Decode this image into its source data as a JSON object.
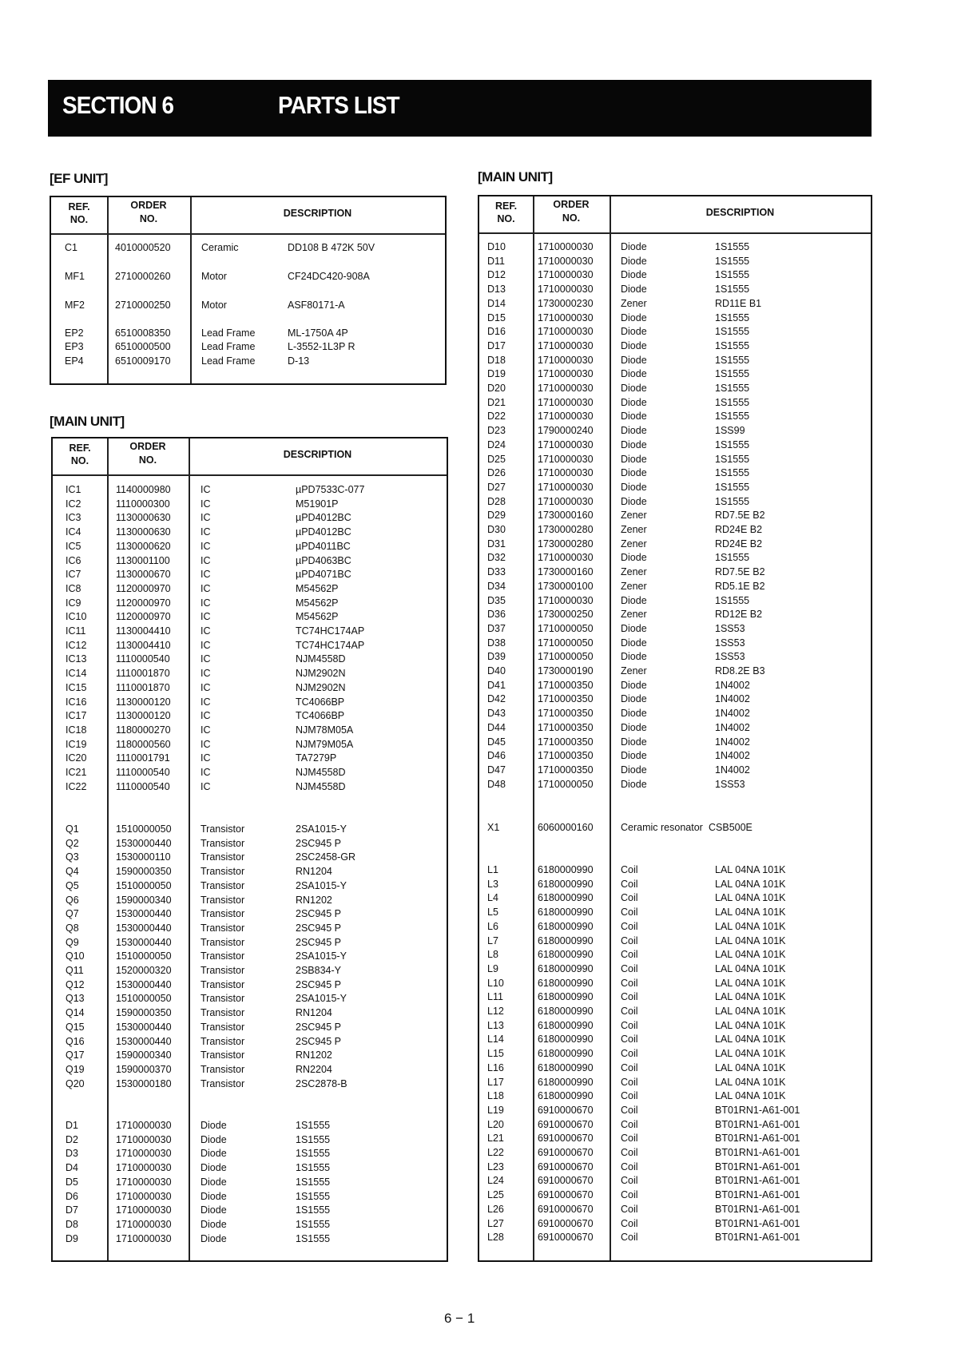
{
  "header": {
    "section": "SECTION 6",
    "title": "PARTS LIST"
  },
  "columns": {
    "ref_line1": "REF.",
    "ref_line2": "NO.",
    "order_line1": "ORDER",
    "order_line2": "NO.",
    "description": "DESCRIPTION"
  },
  "ef_unit": {
    "label": "[EF UNIT]",
    "rows": [
      [
        "C1",
        "4010000520",
        "Ceramic",
        "DD108 B 472K 50V"
      ],
      [
        "MF1",
        "2710000260",
        "Motor",
        "CF24DC420-908A"
      ],
      [
        "MF2",
        "2710000250",
        "Motor",
        "ASF80171-A"
      ],
      [
        "EP2",
        "6510008350",
        "Lead Frame",
        "ML-1750A 4P"
      ],
      [
        "EP3",
        "6510000500",
        "Lead Frame",
        "L-3552-1L3P R"
      ],
      [
        "EP4",
        "6510009170",
        "Lead Frame",
        "D-13"
      ]
    ]
  },
  "main_unit_left": {
    "label": "[MAIN UNIT]",
    "groups": [
      [
        [
          "IC1",
          "1140000980",
          "IC",
          "µPD7533C-077"
        ],
        [
          "IC2",
          "1110000300",
          "IC",
          "M51901P"
        ],
        [
          "IC3",
          "1130000630",
          "IC",
          "µPD4012BC"
        ],
        [
          "IC4",
          "1130000630",
          "IC",
          "µPD4012BC"
        ],
        [
          "IC5",
          "1130000620",
          "IC",
          "µPD4011BC"
        ],
        [
          "IC6",
          "1130001100",
          "IC",
          "µPD4063BC"
        ],
        [
          "IC7",
          "1130000670",
          "IC",
          "µPD4071BC"
        ],
        [
          "IC8",
          "1120000970",
          "IC",
          "M54562P"
        ],
        [
          "IC9",
          "1120000970",
          "IC",
          "M54562P"
        ],
        [
          "IC10",
          "1120000970",
          "IC",
          "M54562P"
        ],
        [
          "IC11",
          "1130004410",
          "IC",
          "TC74HC174AP"
        ],
        [
          "IC12",
          "1130004410",
          "IC",
          "TC74HC174AP"
        ],
        [
          "IC13",
          "1110000540",
          "IC",
          "NJM4558D"
        ],
        [
          "IC14",
          "1110001870",
          "IC",
          "NJM2902N"
        ],
        [
          "IC15",
          "1110001870",
          "IC",
          "NJM2902N"
        ],
        [
          "IC16",
          "1130000120",
          "IC",
          "TC4066BP"
        ],
        [
          "IC17",
          "1130000120",
          "IC",
          "TC4066BP"
        ],
        [
          "IC18",
          "1180000270",
          "IC",
          "NJM78M05A"
        ],
        [
          "IC19",
          "1180000560",
          "IC",
          "NJM79M05A"
        ],
        [
          "IC20",
          "1110001791",
          "IC",
          "TA7279P"
        ],
        [
          "IC21",
          "1110000540",
          "IC",
          "NJM4558D"
        ],
        [
          "IC22",
          "1110000540",
          "IC",
          "NJM4558D"
        ]
      ],
      [
        [
          "Q1",
          "1510000050",
          "Transistor",
          "2SA1015-Y"
        ],
        [
          "Q2",
          "1530000440",
          "Transistor",
          "2SC945 P"
        ],
        [
          "Q3",
          "1530000110",
          "Transistor",
          "2SC2458-GR"
        ],
        [
          "Q4",
          "1590000350",
          "Transistor",
          "RN1204"
        ],
        [
          "Q5",
          "1510000050",
          "Transistor",
          "2SA1015-Y"
        ],
        [
          "Q6",
          "1590000340",
          "Transistor",
          "RN1202"
        ],
        [
          "Q7",
          "1530000440",
          "Transistor",
          "2SC945 P"
        ],
        [
          "Q8",
          "1530000440",
          "Transistor",
          "2SC945 P"
        ],
        [
          "Q9",
          "1530000440",
          "Transistor",
          "2SC945 P"
        ],
        [
          "Q10",
          "1510000050",
          "Transistor",
          "2SA1015-Y"
        ],
        [
          "Q11",
          "1520000320",
          "Transistor",
          "2SB834-Y"
        ],
        [
          "Q12",
          "1530000440",
          "Transistor",
          "2SC945 P"
        ],
        [
          "Q13",
          "1510000050",
          "Transistor",
          "2SA1015-Y"
        ],
        [
          "Q14",
          "1590000350",
          "Transistor",
          "RN1204"
        ],
        [
          "Q15",
          "1530000440",
          "Transistor",
          "2SC945 P"
        ],
        [
          "Q16",
          "1530000440",
          "Transistor",
          "2SC945 P"
        ],
        [
          "Q17",
          "1590000340",
          "Transistor",
          "RN1202"
        ],
        [
          "Q19",
          "1590000370",
          "Transistor",
          "RN2204"
        ],
        [
          "Q20",
          "1530000180",
          "Transistor",
          "2SC2878-B"
        ]
      ],
      [
        [
          "D1",
          "1710000030",
          "Diode",
          "1S1555"
        ],
        [
          "D2",
          "1710000030",
          "Diode",
          "1S1555"
        ],
        [
          "D3",
          "1710000030",
          "Diode",
          "1S1555"
        ],
        [
          "D4",
          "1710000030",
          "Diode",
          "1S1555"
        ],
        [
          "D5",
          "1710000030",
          "Diode",
          "1S1555"
        ],
        [
          "D6",
          "1710000030",
          "Diode",
          "1S1555"
        ],
        [
          "D7",
          "1710000030",
          "Diode",
          "1S1555"
        ],
        [
          "D8",
          "1710000030",
          "Diode",
          "1S1555"
        ],
        [
          "D9",
          "1710000030",
          "Diode",
          "1S1555"
        ]
      ]
    ]
  },
  "main_unit_right": {
    "label": "[MAIN UNIT]",
    "groups": [
      [
        [
          "D10",
          "1710000030",
          "Diode",
          "1S1555"
        ],
        [
          "D11",
          "1710000030",
          "Diode",
          "1S1555"
        ],
        [
          "D12",
          "1710000030",
          "Diode",
          "1S1555"
        ],
        [
          "D13",
          "1710000030",
          "Diode",
          "1S1555"
        ],
        [
          "D14",
          "1730000230",
          "Zener",
          "RD11E B1"
        ],
        [
          "D15",
          "1710000030",
          "Diode",
          "1S1555"
        ],
        [
          "D16",
          "1710000030",
          "Diode",
          "1S1555"
        ],
        [
          "D17",
          "1710000030",
          "Diode",
          "1S1555"
        ],
        [
          "D18",
          "1710000030",
          "Diode",
          "1S1555"
        ],
        [
          "D19",
          "1710000030",
          "Diode",
          "1S1555"
        ],
        [
          "D20",
          "1710000030",
          "Diode",
          "1S1555"
        ],
        [
          "D21",
          "1710000030",
          "Diode",
          "1S1555"
        ],
        [
          "D22",
          "1710000030",
          "Diode",
          "1S1555"
        ],
        [
          "D23",
          "1790000240",
          "Diode",
          "1SS99"
        ],
        [
          "D24",
          "1710000030",
          "Diode",
          "1S1555"
        ],
        [
          "D25",
          "1710000030",
          "Diode",
          "1S1555"
        ],
        [
          "D26",
          "1710000030",
          "Diode",
          "1S1555"
        ],
        [
          "D27",
          "1710000030",
          "Diode",
          "1S1555"
        ],
        [
          "D28",
          "1710000030",
          "Diode",
          "1S1555"
        ],
        [
          "D29",
          "1730000160",
          "Zener",
          "RD7.5E B2"
        ],
        [
          "D30",
          "1730000280",
          "Zener",
          "RD24E B2"
        ],
        [
          "D31",
          "1730000280",
          "Zener",
          "RD24E B2"
        ],
        [
          "D32",
          "1710000030",
          "Diode",
          "1S1555"
        ],
        [
          "D33",
          "1730000160",
          "Zener",
          "RD7.5E B2"
        ],
        [
          "D34",
          "1730000100",
          "Zener",
          "RD5.1E B2"
        ],
        [
          "D35",
          "1710000030",
          "Diode",
          "1S1555"
        ],
        [
          "D36",
          "1730000250",
          "Zener",
          "RD12E B2"
        ],
        [
          "D37",
          "1710000050",
          "Diode",
          "1SS53"
        ],
        [
          "D38",
          "1710000050",
          "Diode",
          "1SS53"
        ],
        [
          "D39",
          "1710000050",
          "Diode",
          "1SS53"
        ],
        [
          "D40",
          "1730000190",
          "Zener",
          "RD8.2E B3"
        ],
        [
          "D41",
          "1710000350",
          "Diode",
          "1N4002"
        ],
        [
          "D42",
          "1710000350",
          "Diode",
          "1N4002"
        ],
        [
          "D43",
          "1710000350",
          "Diode",
          "1N4002"
        ],
        [
          "D44",
          "1710000350",
          "Diode",
          "1N4002"
        ],
        [
          "D45",
          "1710000350",
          "Diode",
          "1N4002"
        ],
        [
          "D46",
          "1710000350",
          "Diode",
          "1N4002"
        ],
        [
          "D47",
          "1710000350",
          "Diode",
          "1N4002"
        ],
        [
          "D48",
          "1710000050",
          "Diode",
          "1SS53"
        ]
      ],
      [
        [
          "X1",
          "6060000160",
          "Ceramic resonator",
          "CSB500E"
        ]
      ],
      [
        [
          "L1",
          "6180000990",
          "Coil",
          "LAL 04NA 101K"
        ],
        [
          "L3",
          "6180000990",
          "Coil",
          "LAL 04NA 101K"
        ],
        [
          "L4",
          "6180000990",
          "Coil",
          "LAL 04NA 101K"
        ],
        [
          "L5",
          "6180000990",
          "Coil",
          "LAL 04NA 101K"
        ],
        [
          "L6",
          "6180000990",
          "Coil",
          "LAL 04NA 101K"
        ],
        [
          "L7",
          "6180000990",
          "Coil",
          "LAL 04NA 101K"
        ],
        [
          "L8",
          "6180000990",
          "Coil",
          "LAL 04NA 101K"
        ],
        [
          "L9",
          "6180000990",
          "Coil",
          "LAL 04NA 101K"
        ],
        [
          "L10",
          "6180000990",
          "Coil",
          "LAL 04NA 101K"
        ],
        [
          "L11",
          "6180000990",
          "Coil",
          "LAL 04NA 101K"
        ],
        [
          "L12",
          "6180000990",
          "Coil",
          "LAL 04NA 101K"
        ],
        [
          "L13",
          "6180000990",
          "Coil",
          "LAL 04NA 101K"
        ],
        [
          "L14",
          "6180000990",
          "Coil",
          "LAL 04NA 101K"
        ],
        [
          "L15",
          "6180000990",
          "Coil",
          "LAL 04NA 101K"
        ],
        [
          "L16",
          "6180000990",
          "Coil",
          "LAL 04NA 101K"
        ],
        [
          "L17",
          "6180000990",
          "Coil",
          "LAL 04NA 101K"
        ],
        [
          "L18",
          "6180000990",
          "Coil",
          "LAL 04NA 101K"
        ],
        [
          "L19",
          "6910000670",
          "Coil",
          "BT01RN1-A61-001"
        ],
        [
          "L20",
          "6910000670",
          "Coil",
          "BT01RN1-A61-001"
        ],
        [
          "L21",
          "6910000670",
          "Coil",
          "BT01RN1-A61-001"
        ],
        [
          "L22",
          "6910000670",
          "Coil",
          "BT01RN1-A61-001"
        ],
        [
          "L23",
          "6910000670",
          "Coil",
          "BT01RN1-A61-001"
        ],
        [
          "L24",
          "6910000670",
          "Coil",
          "BT01RN1-A61-001"
        ],
        [
          "L25",
          "6910000670",
          "Coil",
          "BT01RN1-A61-001"
        ],
        [
          "L26",
          "6910000670",
          "Coil",
          "BT01RN1-A61-001"
        ],
        [
          "L27",
          "6910000670",
          "Coil",
          "BT01RN1-A61-001"
        ],
        [
          "L28",
          "6910000670",
          "Coil",
          "BT01RN1-A61-001"
        ]
      ]
    ]
  },
  "footer": {
    "page_number": "6 − 1"
  }
}
